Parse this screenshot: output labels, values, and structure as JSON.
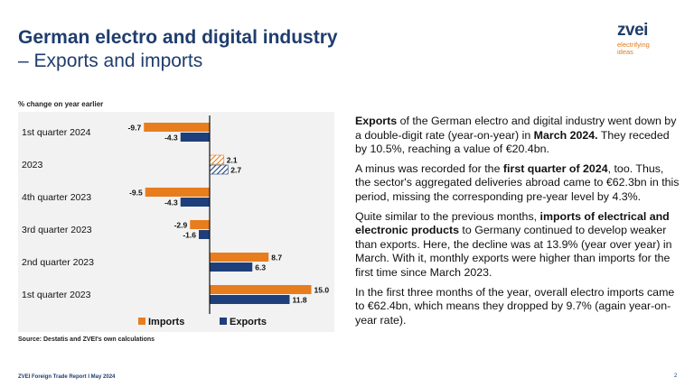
{
  "header": {
    "title": "German electro and digital industry",
    "subtitle": "– Exports and imports"
  },
  "logo": {
    "name": "zvei",
    "tagline_1": "electrifying",
    "tagline_2": "ideas"
  },
  "chart_unit": "% change on year earlier",
  "source": "Source: Destatis and ZVEI's own calculations",
  "colors": {
    "imports": "#e87d1e",
    "exports": "#1f3f7a",
    "title": "#1f3d6d",
    "panel": "#f2f2f2"
  },
  "chart_data": {
    "type": "bar",
    "orientation": "horizontal",
    "categories": [
      "1st quarter 2024",
      "2023",
      "4th quarter 2023",
      "3rd quarter 2023",
      "2nd quarter 2023",
      "1st quarter 2023"
    ],
    "series": [
      {
        "name": "Imports",
        "values": [
          -9.7,
          2.1,
          -9.5,
          -2.9,
          8.7,
          15.0
        ],
        "labels": [
          "-9.7",
          "2.1",
          "-9.5",
          "-2.9",
          "8.7",
          "15.0"
        ]
      },
      {
        "name": "Exports",
        "values": [
          -4.3,
          2.7,
          -4.3,
          -1.6,
          6.3,
          11.8
        ],
        "labels": [
          "-4.3",
          "2.7",
          "-4.3",
          "-1.6",
          "6.3",
          "11.8"
        ]
      }
    ],
    "hatched_categories": [
      "2023"
    ],
    "legend_position": "bottom",
    "grid": false
  },
  "paragraphs": [
    [
      {
        "t": "Exports",
        "b": true
      },
      {
        "t": " of the German electro and digital industry went down by a double-digit rate (year-on-year) in ",
        "b": false
      },
      {
        "t": "March 2024.",
        "b": true
      },
      {
        "t": " They receded by 10.5%, reaching a value of €20.4bn.",
        "b": false
      }
    ],
    [
      {
        "t": "A minus was recorded for the ",
        "b": false
      },
      {
        "t": "first quarter of 2024",
        "b": true
      },
      {
        "t": ", too. Thus, the sector's aggregated deliveries abroad came to €62.3bn in this period, missing the corresponding pre-year level by 4.3%.",
        "b": false
      }
    ],
    [
      {
        "t": "Quite similar to the previous months, ",
        "b": false
      },
      {
        "t": "imports of electrical and electronic products",
        "b": true
      },
      {
        "t": " to Germany continued to develop weaker than exports. Here, the decline was at 13.9% (year over year) in March. With it, monthly exports were higher than imports for the first time since March 2023.",
        "b": false
      }
    ],
    [
      {
        "t": "In the first three months of the year, overall electro imports came to €62.4bn, which means they dropped by 9.7% (again year-on-year rate).",
        "b": false
      }
    ]
  ],
  "footer": {
    "report": "ZVEI Foreign Trade Report I May 2024",
    "page": "2"
  }
}
